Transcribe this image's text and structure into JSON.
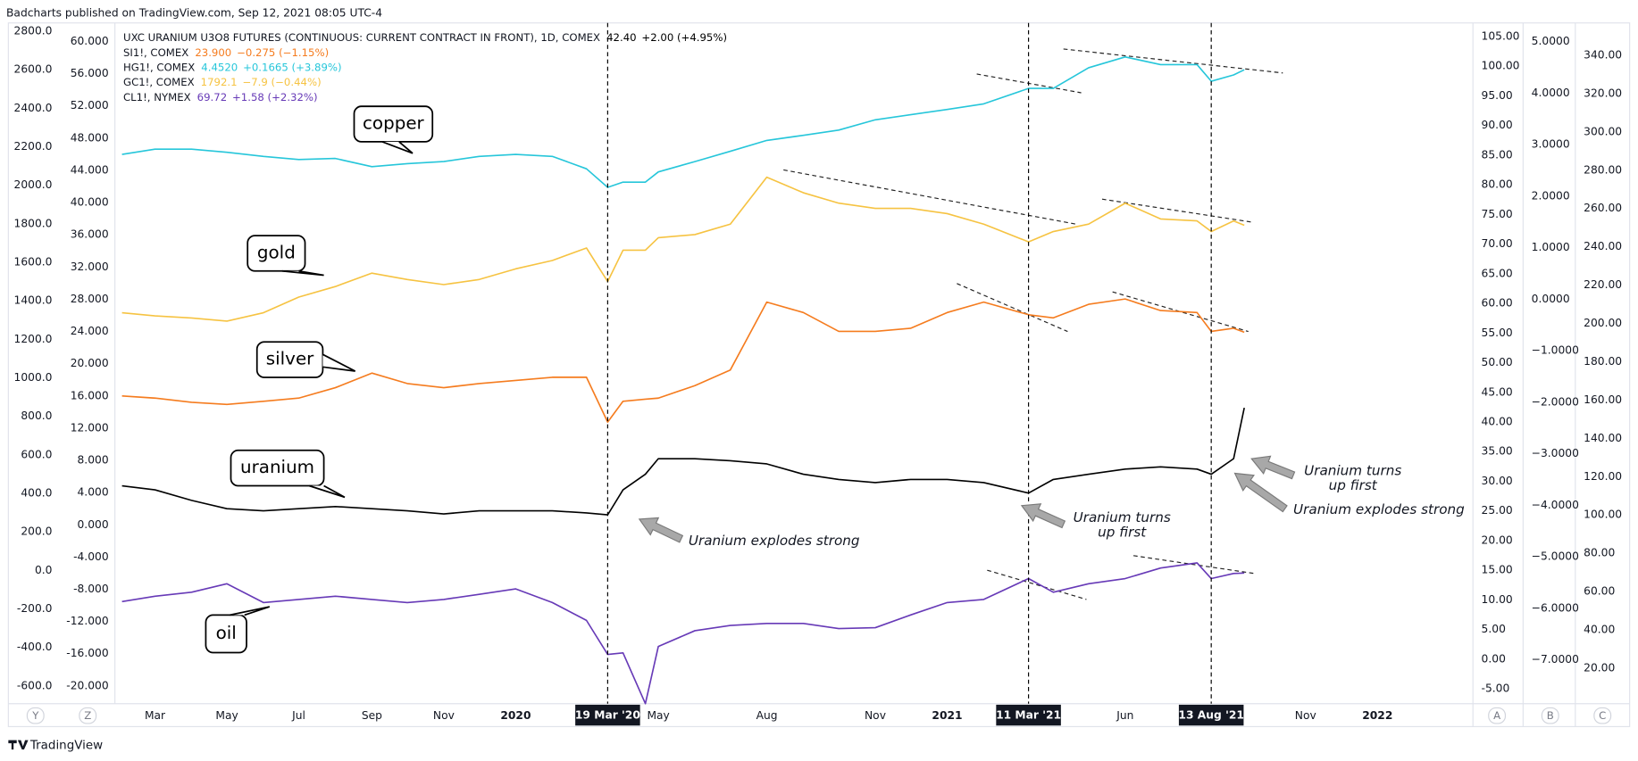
{
  "header": "Badcharts published on TradingView.com, Sep 12, 2021 08:05 UTC-4",
  "footer": "TradingView",
  "axis_buttons": [
    "Y",
    "Z",
    "A",
    "B",
    "C"
  ],
  "chart_data": {
    "type": "line",
    "x": [
      "2019-02-01",
      "2019-03-01",
      "2019-04-01",
      "2019-05-01",
      "2019-06-01",
      "2019-07-01",
      "2019-08-01",
      "2019-09-01",
      "2019-10-01",
      "2019-11-01",
      "2019-12-01",
      "2020-01-01",
      "2020-02-01",
      "2020-03-01",
      "2020-03-19",
      "2020-04-01",
      "2020-04-20",
      "2020-05-01",
      "2020-06-01",
      "2020-07-01",
      "2020-08-01",
      "2020-09-01",
      "2020-10-01",
      "2020-11-01",
      "2020-12-01",
      "2021-01-01",
      "2021-02-01",
      "2021-03-11",
      "2021-04-01",
      "2021-05-01",
      "2021-06-01",
      "2021-07-01",
      "2021-08-01",
      "2021-08-13",
      "2021-09-01",
      "2021-09-10"
    ],
    "xlim": [
      "2019-01-26",
      "2022-03-23"
    ],
    "xticks": [
      {
        "value": "2019-03-01",
        "label": "Mar"
      },
      {
        "value": "2019-05-01",
        "label": "May"
      },
      {
        "value": "2019-07-01",
        "label": "Jul"
      },
      {
        "value": "2019-09-01",
        "label": "Sep"
      },
      {
        "value": "2019-11-01",
        "label": "Nov"
      },
      {
        "value": "2020-01-01",
        "label": "2020"
      },
      {
        "value": "2020-05-01",
        "label": "May"
      },
      {
        "value": "2020-08-01",
        "label": "Aug"
      },
      {
        "value": "2020-11-01",
        "label": "Nov"
      },
      {
        "value": "2021-01-01",
        "label": "2021"
      },
      {
        "value": "2021-06-01",
        "label": "Jun"
      },
      {
        "value": "2021-11-01",
        "label": "Nov"
      },
      {
        "value": "2022-01-01",
        "label": "2022"
      }
    ],
    "crosshairs": [
      {
        "value": "2020-03-19",
        "label": "19 Mar '20"
      },
      {
        "value": "2021-03-11",
        "label": "11 Mar '21"
      },
      {
        "value": "2021-08-13",
        "label": "13 Aug '21"
      }
    ],
    "ylim": [
      -692,
      2843
    ],
    "yticks": [
      {
        "value": 2800,
        "label": "2800.0"
      },
      {
        "value": 2600,
        "label": "2600.0"
      },
      {
        "value": 2400,
        "label": "2400.0"
      },
      {
        "value": 2200,
        "label": "2200.0"
      },
      {
        "value": 2000,
        "label": "2000.0"
      },
      {
        "value": 1800,
        "label": "1800.0"
      },
      {
        "value": 1600,
        "label": "1600.0"
      },
      {
        "value": 1400,
        "label": "1400.0"
      },
      {
        "value": 1200,
        "label": "1200.0"
      },
      {
        "value": 1000,
        "label": "1000.0"
      },
      {
        "value": 800,
        "label": "800.0"
      },
      {
        "value": 600,
        "label": "600.0"
      },
      {
        "value": 400,
        "label": "400.0"
      },
      {
        "value": 200,
        "label": "200.0"
      },
      {
        "value": 0,
        "label": "0.0"
      },
      {
        "value": -200,
        "label": "-200.0"
      },
      {
        "value": -400,
        "label": "-400.0"
      },
      {
        "value": -600,
        "label": "-600.0"
      }
    ],
    "y2lim": [
      -22.2,
      62.3
    ],
    "y2ticks": [
      {
        "value": 60,
        "label": "60.000"
      },
      {
        "value": 56,
        "label": "56.000"
      },
      {
        "value": 52,
        "label": "52.000"
      },
      {
        "value": 48,
        "label": "48.000"
      },
      {
        "value": 44,
        "label": "44.000"
      },
      {
        "value": 40,
        "label": "40.000"
      },
      {
        "value": 36,
        "label": "36.000"
      },
      {
        "value": 32,
        "label": "32.000"
      },
      {
        "value": 28,
        "label": "28.000"
      },
      {
        "value": 24,
        "label": "24.000"
      },
      {
        "value": 20,
        "label": "20.000"
      },
      {
        "value": 16,
        "label": "16.000"
      },
      {
        "value": 12,
        "label": "12.000"
      },
      {
        "value": 8,
        "label": "8.000"
      },
      {
        "value": 4,
        "label": "4.000"
      },
      {
        "value": 0,
        "label": "0.000"
      },
      {
        "value": -4,
        "label": "-4.000"
      },
      {
        "value": -8,
        "label": "-8.000"
      },
      {
        "value": -12,
        "label": "-12.000"
      },
      {
        "value": -16,
        "label": "-16.000"
      },
      {
        "value": -20,
        "label": "-20.000"
      }
    ],
    "y3lim": [
      -7.5,
      107.3
    ],
    "y3ticks": [
      {
        "value": 105,
        "label": "105.00"
      },
      {
        "value": 100,
        "label": "100.00"
      },
      {
        "value": 95,
        "label": "95.00"
      },
      {
        "value": 90,
        "label": "90.00"
      },
      {
        "value": 85,
        "label": "85.00"
      },
      {
        "value": 80,
        "label": "80.00"
      },
      {
        "value": 75,
        "label": "75.00"
      },
      {
        "value": 70,
        "label": "70.00"
      },
      {
        "value": 65,
        "label": "65.00"
      },
      {
        "value": 60,
        "label": "60.00"
      },
      {
        "value": 55,
        "label": "55.00"
      },
      {
        "value": 50,
        "label": "50.00"
      },
      {
        "value": 45,
        "label": "45.00"
      },
      {
        "value": 40,
        "label": "40.00"
      },
      {
        "value": 35,
        "label": "35.00"
      },
      {
        "value": 30,
        "label": "30.00"
      },
      {
        "value": 25,
        "label": "25.00"
      },
      {
        "value": 20,
        "label": "20.00"
      },
      {
        "value": 15,
        "label": "15.00"
      },
      {
        "value": 10,
        "label": "10.00"
      },
      {
        "value": 5,
        "label": "5.00"
      },
      {
        "value": 0,
        "label": "0.00"
      },
      {
        "value": -5,
        "label": "-5.00"
      }
    ],
    "y4lim": [
      -7.85,
      5.36
    ],
    "y4ticks": [
      {
        "value": 5,
        "label": "5.0000"
      },
      {
        "value": 4,
        "label": "4.0000"
      },
      {
        "value": 3,
        "label": "3.0000"
      },
      {
        "value": 2,
        "label": "2.0000"
      },
      {
        "value": 1,
        "label": "1.0000"
      },
      {
        "value": 0,
        "label": "0.0000"
      },
      {
        "value": -1,
        "label": "−1.0000"
      },
      {
        "value": -2,
        "label": "−2.0000"
      },
      {
        "value": -3,
        "label": "−3.0000"
      },
      {
        "value": -4,
        "label": "−4.0000"
      },
      {
        "value": -5,
        "label": "−5.0000"
      },
      {
        "value": -6,
        "label": "−6.0000"
      },
      {
        "value": -7,
        "label": "−7.0000"
      }
    ],
    "y5lim": [
      1.5,
      356.9
    ],
    "y5ticks": [
      {
        "value": 340,
        "label": "340.00"
      },
      {
        "value": 320,
        "label": "320.00"
      },
      {
        "value": 300,
        "label": "300.00"
      },
      {
        "value": 280,
        "label": "280.00"
      },
      {
        "value": 260,
        "label": "260.00"
      },
      {
        "value": 240,
        "label": "240.00"
      },
      {
        "value": 220,
        "label": "220.00"
      },
      {
        "value": 200,
        "label": "200.00"
      },
      {
        "value": 180,
        "label": "180.00"
      },
      {
        "value": 160,
        "label": "160.00"
      },
      {
        "value": 140,
        "label": "140.00"
      },
      {
        "value": 120,
        "label": "120.00"
      },
      {
        "value": 100,
        "label": "100.00"
      },
      {
        "value": 80,
        "label": "80.00"
      },
      {
        "value": 60,
        "label": "60.00"
      },
      {
        "value": 40,
        "label": "40.00"
      },
      {
        "value": 20,
        "label": "20.00"
      }
    ],
    "series": [
      {
        "name": "UXC URANIUM U3O8 FUTURES (CONTINUOUS: CURRENT CONTRACT IN FRONT), 1D, COMEX",
        "last_label": "42.40",
        "change": "+2.00 (+4.95%)",
        "callout": "uranium",
        "color": "#000000",
        "axis": "y3",
        "values": [
          29.25,
          28.55,
          26.79,
          25.38,
          25.03,
          25.38,
          25.74,
          25.38,
          25.03,
          24.5,
          25.03,
          25.03,
          25.03,
          24.68,
          24.33,
          28.55,
          31.19,
          33.82,
          33.82,
          33.47,
          32.94,
          31.19,
          30.31,
          29.78,
          30.31,
          30.31,
          29.78,
          28.02,
          30.31,
          31.19,
          32.06,
          32.42,
          32.06,
          31.19,
          33.82,
          42.4
        ]
      },
      {
        "name": "SI1!, COMEX",
        "last_label": "23.900",
        "change": "−0.275 (−1.15%)",
        "callout": "silver",
        "color": "#f57c1f",
        "axis": "y2",
        "values": [
          16.0,
          15.73,
          15.21,
          14.95,
          15.34,
          15.73,
          17.02,
          18.83,
          17.54,
          17.02,
          17.54,
          17.93,
          18.32,
          18.32,
          12.75,
          15.34,
          15.6,
          15.73,
          17.28,
          19.22,
          27.64,
          26.35,
          24.01,
          24.01,
          24.4,
          26.35,
          27.64,
          26.08,
          25.69,
          27.38,
          28.03,
          26.6,
          26.35,
          24.01,
          24.4,
          23.9
        ]
      },
      {
        "name": "HG1!, COMEX",
        "last_label": "4.4520",
        "change": "+0.1665 (+3.89%)",
        "callout": "copper",
        "color": "#26c6da",
        "axis": "y4",
        "values": [
          2.81,
          2.91,
          2.91,
          2.85,
          2.77,
          2.71,
          2.73,
          2.57,
          2.63,
          2.67,
          2.77,
          2.81,
          2.77,
          2.53,
          2.17,
          2.27,
          2.27,
          2.47,
          2.67,
          2.87,
          3.08,
          3.18,
          3.28,
          3.48,
          3.58,
          3.68,
          3.79,
          4.09,
          4.09,
          4.49,
          4.7,
          4.55,
          4.55,
          4.23,
          4.35,
          4.452
        ]
      },
      {
        "name": "GC1!, COMEX",
        "last_label": "1792.1",
        "change": "−7.9 (−0.44%)",
        "callout": "gold",
        "color": "#f6c342",
        "axis": "y",
        "values": [
          1338,
          1322,
          1311,
          1295,
          1338,
          1419,
          1474,
          1544,
          1511,
          1484,
          1511,
          1566,
          1609,
          1674,
          1500,
          1663,
          1663,
          1728,
          1744,
          1798,
          2042,
          1961,
          1907,
          1880,
          1880,
          1853,
          1798,
          1706,
          1760,
          1798,
          1907,
          1825,
          1815,
          1760,
          1815,
          1792.1
        ]
      },
      {
        "name": "CL1!, NYMEX",
        "last_label": "69.72",
        "change": "+1.58 (+2.32%)",
        "callout": "oil",
        "color": "#673ab7",
        "axis": "y5",
        "values": [
          54.8,
          57.6,
          59.7,
          64.1,
          54.3,
          55.9,
          57.6,
          55.9,
          54.3,
          55.9,
          58.6,
          61.4,
          54.3,
          45.0,
          27.2,
          28.0,
          1.5,
          31.4,
          39.6,
          42.3,
          43.4,
          43.4,
          40.7,
          41.2,
          47.8,
          54.3,
          55.9,
          66.8,
          59.7,
          64.1,
          66.8,
          72.3,
          75.0,
          66.8,
          69.5,
          69.72
        ]
      }
    ],
    "annotations": [
      {
        "text": [
          "Uranium explodes strong"
        ]
      },
      {
        "text": [
          "Uranium turns",
          "up first"
        ]
      },
      {
        "text": [
          "Uranium turns",
          "up first"
        ]
      },
      {
        "text": [
          "Uranium explodes strong"
        ]
      }
    ]
  }
}
